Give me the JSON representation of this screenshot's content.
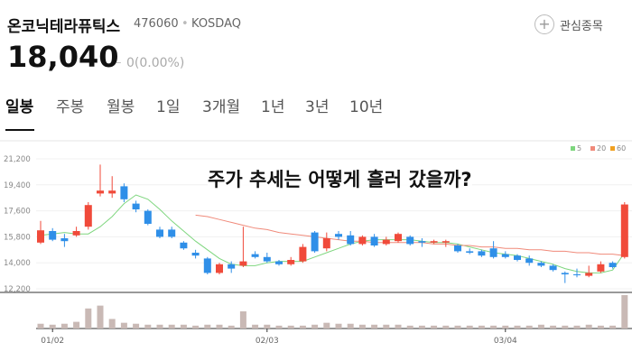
{
  "header": {
    "name": "온코닉테라퓨틱스",
    "code": "476060",
    "market": "KOSDAQ",
    "watch": "관심종목",
    "price": "18,040",
    "change": "0(0.00%)"
  },
  "tabs": [
    "일봉",
    "주봉",
    "월봉",
    "1일",
    "3개월",
    "1년",
    "3년",
    "10년"
  ],
  "overlay": "주가 추세는 어떻게 흘러 갔을까?",
  "chart_data": {
    "type": "candlestick",
    "up_color": "#f04a3a",
    "down_color": "#2f8fe8",
    "volume_color": "#c9b9b5",
    "categories": [
      null,
      "01/02",
      null,
      null,
      null,
      null,
      null,
      null,
      null,
      null,
      null,
      null,
      null,
      null,
      null,
      null,
      null,
      null,
      null,
      "02/03",
      null,
      null,
      null,
      null,
      null,
      null,
      null,
      null,
      null,
      null,
      null,
      null,
      null,
      null,
      null,
      null,
      null,
      null,
      null,
      "03/04",
      null,
      null,
      null,
      null,
      null,
      null,
      null,
      null,
      null,
      null
    ],
    "open": [
      15400,
      16200,
      15700,
      15900,
      16500,
      18800,
      18800,
      19300,
      18100,
      17600,
      16300,
      16300,
      15400,
      14700,
      14300,
      13300,
      13900,
      13800,
      14600,
      14400,
      14100,
      13900,
      14100,
      16100,
      15000,
      16000,
      15900,
      15300,
      15800,
      15300,
      15500,
      15800,
      15500,
      15400,
      15400,
      15200,
      14800,
      14800,
      15000,
      14600,
      14500,
      14300,
      14000,
      13800,
      13300,
      13200,
      13100,
      13400,
      14000,
      14400
    ],
    "high": [
      16900,
      16400,
      16000,
      16500,
      18200,
      20800,
      20000,
      19500,
      18300,
      17700,
      16500,
      16500,
      15500,
      14900,
      14400,
      14000,
      14100,
      16500,
      14800,
      14700,
      14200,
      14400,
      15300,
      16200,
      16100,
      16200,
      16200,
      15900,
      16000,
      15800,
      16100,
      15900,
      15700,
      15600,
      15600,
      15300,
      15000,
      14900,
      15500,
      14800,
      14600,
      14500,
      14100,
      13900,
      13400,
      13600,
      13800,
      14100,
      14100,
      18200
    ],
    "low": [
      15300,
      15500,
      15100,
      15800,
      16300,
      18600,
      18500,
      18200,
      17500,
      16600,
      15700,
      15700,
      14900,
      14300,
      13200,
      13200,
      13300,
      13700,
      14300,
      14000,
      13800,
      13800,
      14000,
      14700,
      14800,
      15600,
      15200,
      15200,
      15100,
      15200,
      15400,
      15200,
      15100,
      15300,
      15100,
      14700,
      14600,
      14400,
      14300,
      14300,
      14100,
      13800,
      13700,
      13400,
      12600,
      13000,
      13000,
      13300,
      13600,
      14300
    ],
    "close": [
      16250,
      15600,
      15500,
      16200,
      18000,
      19000,
      19000,
      18400,
      17700,
      16700,
      15800,
      15800,
      15000,
      14500,
      13300,
      13900,
      13600,
      14100,
      14400,
      14100,
      13900,
      14200,
      15100,
      14800,
      15700,
      15800,
      15300,
      15800,
      15200,
      15600,
      16000,
      15300,
      15400,
      15500,
      15500,
      14800,
      14700,
      14500,
      14400,
      14400,
      14200,
      14000,
      13800,
      13500,
      13200,
      13150,
      13300,
      13900,
      13700,
      18040
    ],
    "volume": [
      5,
      4,
      5,
      7,
      21,
      24,
      10,
      6,
      5,
      4,
      4,
      4,
      4,
      3,
      4,
      4,
      3,
      18,
      4,
      4,
      3,
      3,
      3,
      4,
      6,
      5,
      5,
      4,
      4,
      4,
      4,
      3,
      3,
      3,
      3,
      3,
      3,
      3,
      3,
      3,
      3,
      3,
      4,
      3,
      3,
      3,
      4,
      3,
      3,
      35
    ],
    "series": [
      {
        "name": "5",
        "color": "#7ed67e",
        "values": [
          15900,
          16000,
          16100,
          16000,
          16000,
          16500,
          17200,
          18100,
          18700,
          18400,
          17700,
          16900,
          16200,
          15500,
          14900,
          14300,
          13900,
          13800,
          13800,
          14000,
          14100,
          14100,
          14100,
          14400,
          14700,
          15000,
          15300,
          15500,
          15600,
          15600,
          15600,
          15600,
          15500,
          15400,
          15400,
          15300,
          15100,
          14900,
          14700,
          14600,
          14500,
          14300,
          14100,
          13900,
          13600,
          13400,
          13300,
          13300,
          13500,
          14700
        ]
      },
      {
        "name": "20",
        "color": "#f08a7a",
        "values": [
          null,
          null,
          null,
          null,
          null,
          null,
          null,
          null,
          null,
          null,
          null,
          null,
          null,
          17300,
          17200,
          17000,
          16800,
          16600,
          16400,
          16300,
          16100,
          16000,
          15900,
          15800,
          15700,
          15600,
          15500,
          15500,
          15400,
          15400,
          15400,
          15400,
          15400,
          15300,
          15300,
          15200,
          15200,
          15100,
          15100,
          15000,
          15000,
          14900,
          14900,
          14800,
          14800,
          14700,
          14700,
          14600,
          14600,
          14500
        ]
      },
      {
        "name": "60",
        "color": "#f0a020",
        "values": [
          null,
          null,
          null,
          null,
          null,
          null,
          null,
          null,
          null,
          null,
          null,
          null,
          null,
          null,
          null,
          null,
          null,
          null,
          null,
          null,
          null,
          null,
          null,
          null,
          null,
          null,
          null,
          null,
          null,
          null,
          null,
          null,
          null,
          null,
          null,
          null,
          null,
          null,
          null,
          null,
          null,
          null,
          null,
          null,
          null,
          null,
          null,
          null,
          null,
          null
        ]
      }
    ],
    "ylim": [
      12200,
      21200
    ],
    "yticks": [
      {
        "value": 12200,
        "label": "12,200"
      },
      {
        "value": 14000,
        "label": "14,000"
      },
      {
        "value": 15800,
        "label": "15,800"
      },
      {
        "value": 17600,
        "label": "17,600"
      },
      {
        "value": 19400,
        "label": "19,400"
      },
      {
        "value": 21200,
        "label": "21,200"
      }
    ],
    "grid": true
  }
}
